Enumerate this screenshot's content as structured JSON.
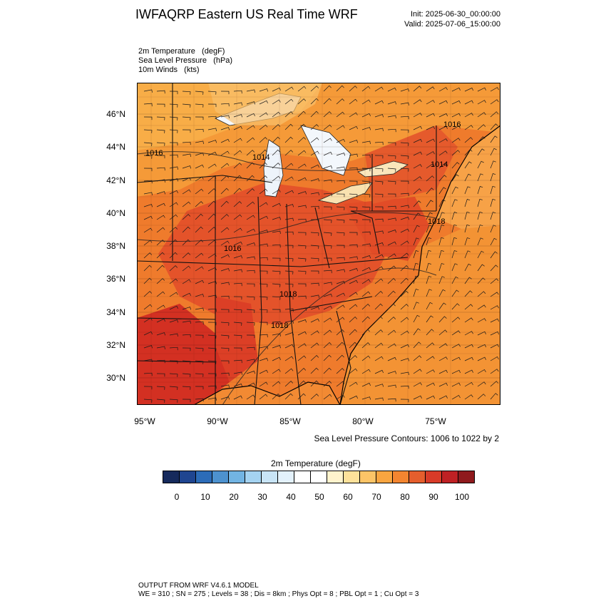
{
  "header": {
    "title": "IWFAQRP Eastern US Real Time WRF",
    "init": "Init: 2025-06-30_00:00:00",
    "valid": "Valid: 2025-07-06_15:00:00"
  },
  "fields": [
    "2m Temperature   (degF)",
    "Sea Level Pressure   (hPa)",
    "10m Winds   (kts)"
  ],
  "map": {
    "lat_labels": [
      "46°N",
      "44°N",
      "42°N",
      "40°N",
      "38°N",
      "36°N",
      "34°N",
      "32°N",
      "30°N"
    ],
    "lon_labels": [
      "95°W",
      "90°W",
      "85°W",
      "80°W",
      "75°W"
    ],
    "pressure_labels": [
      "1016",
      "1014",
      "1016",
      "1014",
      "1018",
      "1016",
      "1018",
      "1018"
    ],
    "colors": {
      "land_hot": "#e34a26",
      "land_warm": "#f07a2a",
      "land_mild": "#f7a43a",
      "ocean": "#f39334",
      "lake": "#f5f9fe",
      "deep_south": "#d33022"
    }
  },
  "slp_note": "Sea Level Pressure Contours: 1006 to 1022 by 2",
  "colorbar": {
    "title": "2m Temperature  (degF)",
    "colors": [
      "#162a5c",
      "#1f4590",
      "#2c6cb8",
      "#4d92cf",
      "#72b4e3",
      "#a5d3f1",
      "#c8e4f6",
      "#e3f1fb",
      "#ffffff",
      "#ffffff",
      "#fff3cc",
      "#fde19a",
      "#fcc467",
      "#f9a540",
      "#f38530",
      "#e55e2d",
      "#d83b28",
      "#bf2124",
      "#8f1a1d"
    ],
    "labels": [
      "0",
      "10",
      "20",
      "30",
      "40",
      "50",
      "60",
      "70",
      "80",
      "90",
      "100"
    ]
  },
  "footer": {
    "line1": "OUTPUT FROM WRF V4.6.1 MODEL",
    "line2": "WE = 310 ; SN = 275 ; Levels = 38 ; Dis = 8km ; Phys Opt = 8 ; PBL Opt = 1 ; Cu Opt = 3"
  }
}
